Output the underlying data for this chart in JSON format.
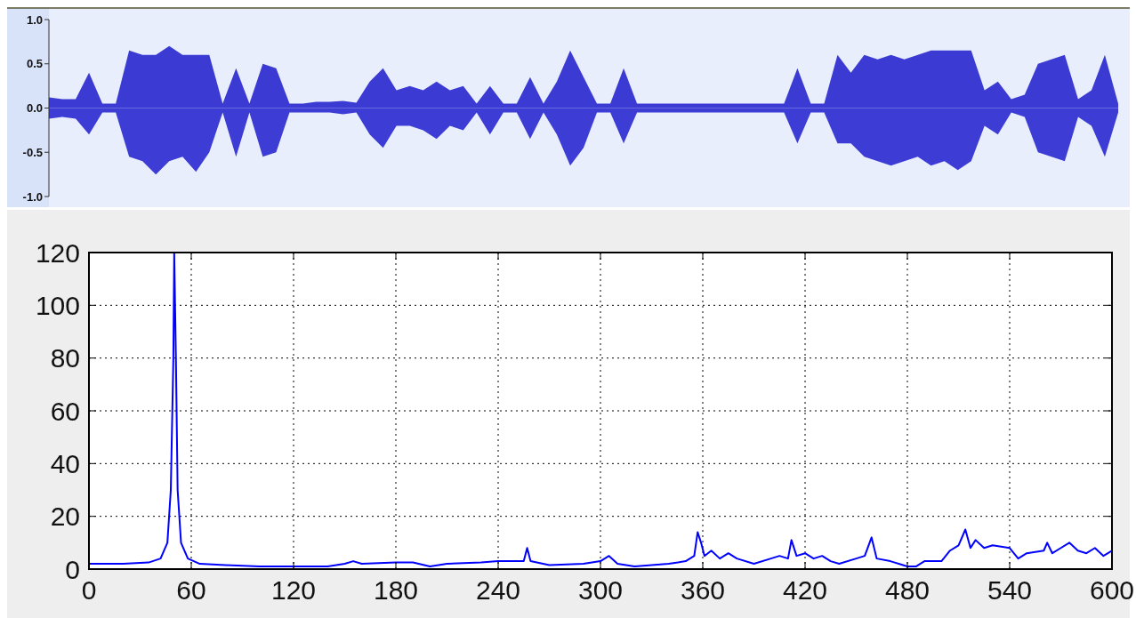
{
  "chart_data": [
    {
      "type": "area",
      "categories": [
        null,
        null,
        null,
        null,
        null,
        null,
        null,
        null,
        null,
        null,
        null,
        null,
        null,
        null,
        null,
        null,
        null,
        null,
        null,
        null,
        null,
        null,
        null,
        null,
        null,
        null,
        null,
        null,
        null,
        null,
        null,
        null,
        null,
        null,
        null,
        null,
        null,
        null,
        null,
        null,
        null,
        null,
        null,
        null,
        null,
        null,
        null,
        null,
        null,
        null,
        null,
        null,
        null,
        null,
        null,
        null,
        null,
        null,
        null,
        null,
        null,
        null,
        null,
        null,
        null,
        null,
        null,
        null,
        null,
        null,
        null,
        null,
        null,
        null,
        null,
        null,
        null,
        null,
        null,
        null,
        null
      ],
      "series": [
        {
          "color": "#3b3bd4",
          "values": [
            0.12,
            0.1,
            0.1,
            0.4,
            0.05,
            0.05,
            0.65,
            0.6,
            0.6,
            0.7,
            0.6,
            0.6,
            0.6,
            0.05,
            0.45,
            0.05,
            0.5,
            0.45,
            0.05,
            0.05,
            0.07,
            0.07,
            0.08,
            0.06,
            0.3,
            0.45,
            0.2,
            0.25,
            0.2,
            0.3,
            0.2,
            0.25,
            0.05,
            0.25,
            0.05,
            0.05,
            0.35,
            0.05,
            0.3,
            0.65,
            0.35,
            0.05,
            0.05,
            0.45,
            0.05,
            0.05,
            0.05,
            0.05,
            0.05,
            0.05,
            0.05,
            0.05,
            0.05,
            0.05,
            0.05,
            0.05,
            0.45,
            0.05,
            0.05,
            0.6,
            0.4,
            0.6,
            0.55,
            0.6,
            0.55,
            0.6,
            0.65,
            0.65,
            0.65,
            0.65,
            0.2,
            0.3,
            0.1,
            0.15,
            0.5,
            0.55,
            0.6,
            0.1,
            0.2,
            0.6,
            0.05
          ]
        },
        {
          "color": "#3d3dd6",
          "values": [
            -0.12,
            -0.1,
            -0.12,
            -0.3,
            -0.05,
            -0.05,
            -0.55,
            -0.6,
            -0.75,
            -0.6,
            -0.55,
            -0.72,
            -0.5,
            -0.05,
            -0.55,
            -0.05,
            -0.55,
            -0.5,
            -0.05,
            -0.05,
            -0.05,
            -0.05,
            -0.07,
            -0.05,
            -0.3,
            -0.45,
            -0.2,
            -0.2,
            -0.25,
            -0.35,
            -0.2,
            -0.25,
            -0.05,
            -0.3,
            -0.05,
            -0.05,
            -0.35,
            -0.05,
            -0.3,
            -0.65,
            -0.45,
            -0.05,
            -0.05,
            -0.4,
            -0.05,
            -0.05,
            -0.05,
            -0.05,
            -0.05,
            -0.05,
            -0.05,
            -0.05,
            -0.05,
            -0.05,
            -0.05,
            -0.05,
            -0.4,
            -0.05,
            -0.05,
            -0.4,
            -0.4,
            -0.55,
            -0.6,
            -0.65,
            -0.6,
            -0.55,
            -0.65,
            -0.6,
            -0.7,
            -0.6,
            -0.2,
            -0.3,
            -0.05,
            -0.1,
            -0.5,
            -0.55,
            -0.6,
            -0.1,
            -0.2,
            -0.55,
            -0.05
          ]
        }
      ],
      "ylim": [
        -1,
        1
      ],
      "yticks": [
        {
          "value": -1,
          "label": "-1.0"
        },
        {
          "value": -0.5,
          "label": "-0.5"
        },
        {
          "value": 0,
          "label": "0.0"
        },
        {
          "value": 0.5,
          "label": "0.5"
        },
        {
          "value": 1,
          "label": "1.0"
        }
      ],
      "tick_labels": "y"
    },
    {
      "type": "line",
      "x": [
        0,
        20,
        35,
        42,
        46,
        48,
        49.5,
        50,
        51,
        52,
        54,
        58,
        65,
        80,
        100,
        120,
        140,
        150,
        155,
        160,
        180,
        190,
        200,
        210,
        230,
        240,
        250,
        255,
        257,
        259,
        270,
        290,
        300,
        305,
        310,
        320,
        340,
        350,
        355,
        357,
        359,
        361,
        365,
        370,
        375,
        380,
        390,
        400,
        405,
        410,
        412,
        415,
        420,
        425,
        430,
        435,
        440,
        450,
        455,
        459,
        462,
        470,
        480,
        485,
        490,
        500,
        505,
        510,
        514,
        517,
        520,
        525,
        530,
        540,
        545,
        550,
        560,
        562,
        565,
        570,
        575,
        580,
        585,
        590,
        595,
        600
      ],
      "series": [
        {
          "color": "#0000ff",
          "values": [
            2,
            2,
            2.5,
            4,
            10,
            30,
            80,
            120,
            80,
            30,
            10,
            4,
            2,
            1.5,
            1,
            1,
            1,
            2,
            3,
            2,
            2.5,
            2.5,
            1,
            2,
            2.5,
            3,
            3,
            3,
            8,
            3,
            1.5,
            2,
            3,
            5,
            2,
            1,
            2,
            3,
            5,
            14,
            10,
            5,
            7,
            4,
            6,
            4,
            2,
            4,
            5,
            4,
            11,
            5,
            6,
            4,
            5,
            3,
            2,
            4,
            5,
            12,
            4,
            3,
            1,
            1,
            3,
            3,
            7,
            9,
            15,
            8,
            11,
            8,
            9,
            8,
            4,
            6,
            7,
            10,
            6,
            8,
            10,
            7,
            6,
            8,
            5,
            7
          ]
        }
      ],
      "xlim": [
        0,
        600
      ],
      "xticks": [
        0,
        60,
        120,
        180,
        240,
        300,
        360,
        420,
        480,
        540,
        600
      ],
      "ylim": [
        0,
        120
      ],
      "yticks": [
        0,
        20,
        40,
        60,
        80,
        100,
        120
      ],
      "grid": true
    }
  ]
}
